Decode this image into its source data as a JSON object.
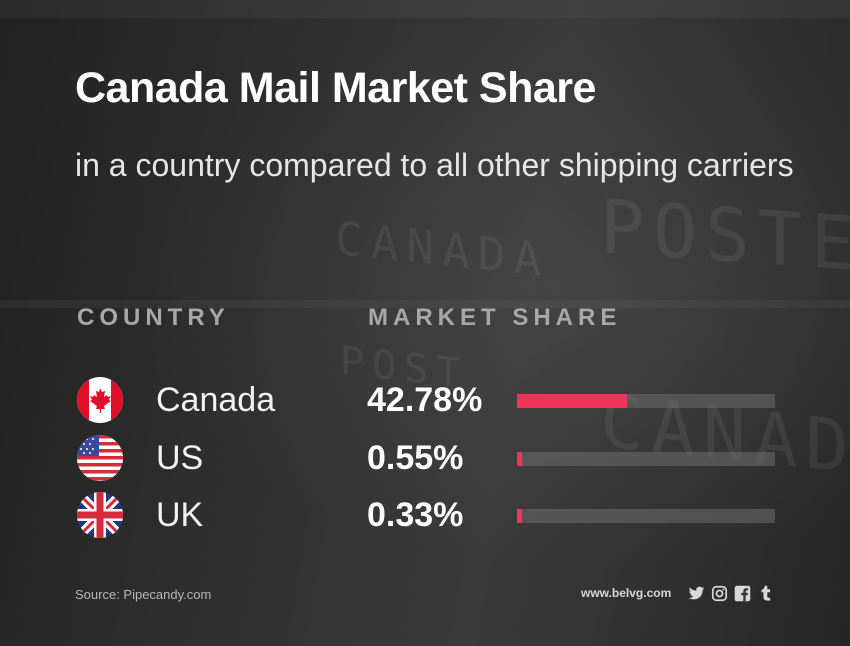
{
  "title": "Canada Mail Market Share",
  "subtitle": "in a country compared to all other shipping carriers",
  "columns": {
    "country": "COUNTRY",
    "share": "MARKET SHARE"
  },
  "background_text": [
    "POSTES",
    "CANADA",
    "POST",
    "CANADA"
  ],
  "accent_color": "#f0345a",
  "chart_data": {
    "type": "bar",
    "title": "Canada Mail Market Share",
    "subtitle": "in a country compared to all other shipping carriers",
    "categories": [
      "Canada",
      "US",
      "UK"
    ],
    "values": [
      42.78,
      0.55,
      0.33
    ],
    "value_labels": [
      "42.78%",
      "0.55%",
      "0.33%"
    ],
    "flag_icons": [
      "canada-flag-icon",
      "us-flag-icon",
      "uk-flag-icon"
    ],
    "xlim": [
      0,
      100
    ],
    "bar_color": "#f0345a",
    "track_color": "#5a5a5a",
    "grid": false,
    "orientation": "horizontal"
  },
  "footer": {
    "source": "Source: Pipecandy.com",
    "brand": "www.belvg.com",
    "social_icons": [
      "twitter-icon",
      "instagram-icon",
      "facebook-icon",
      "tumblr-icon"
    ]
  }
}
